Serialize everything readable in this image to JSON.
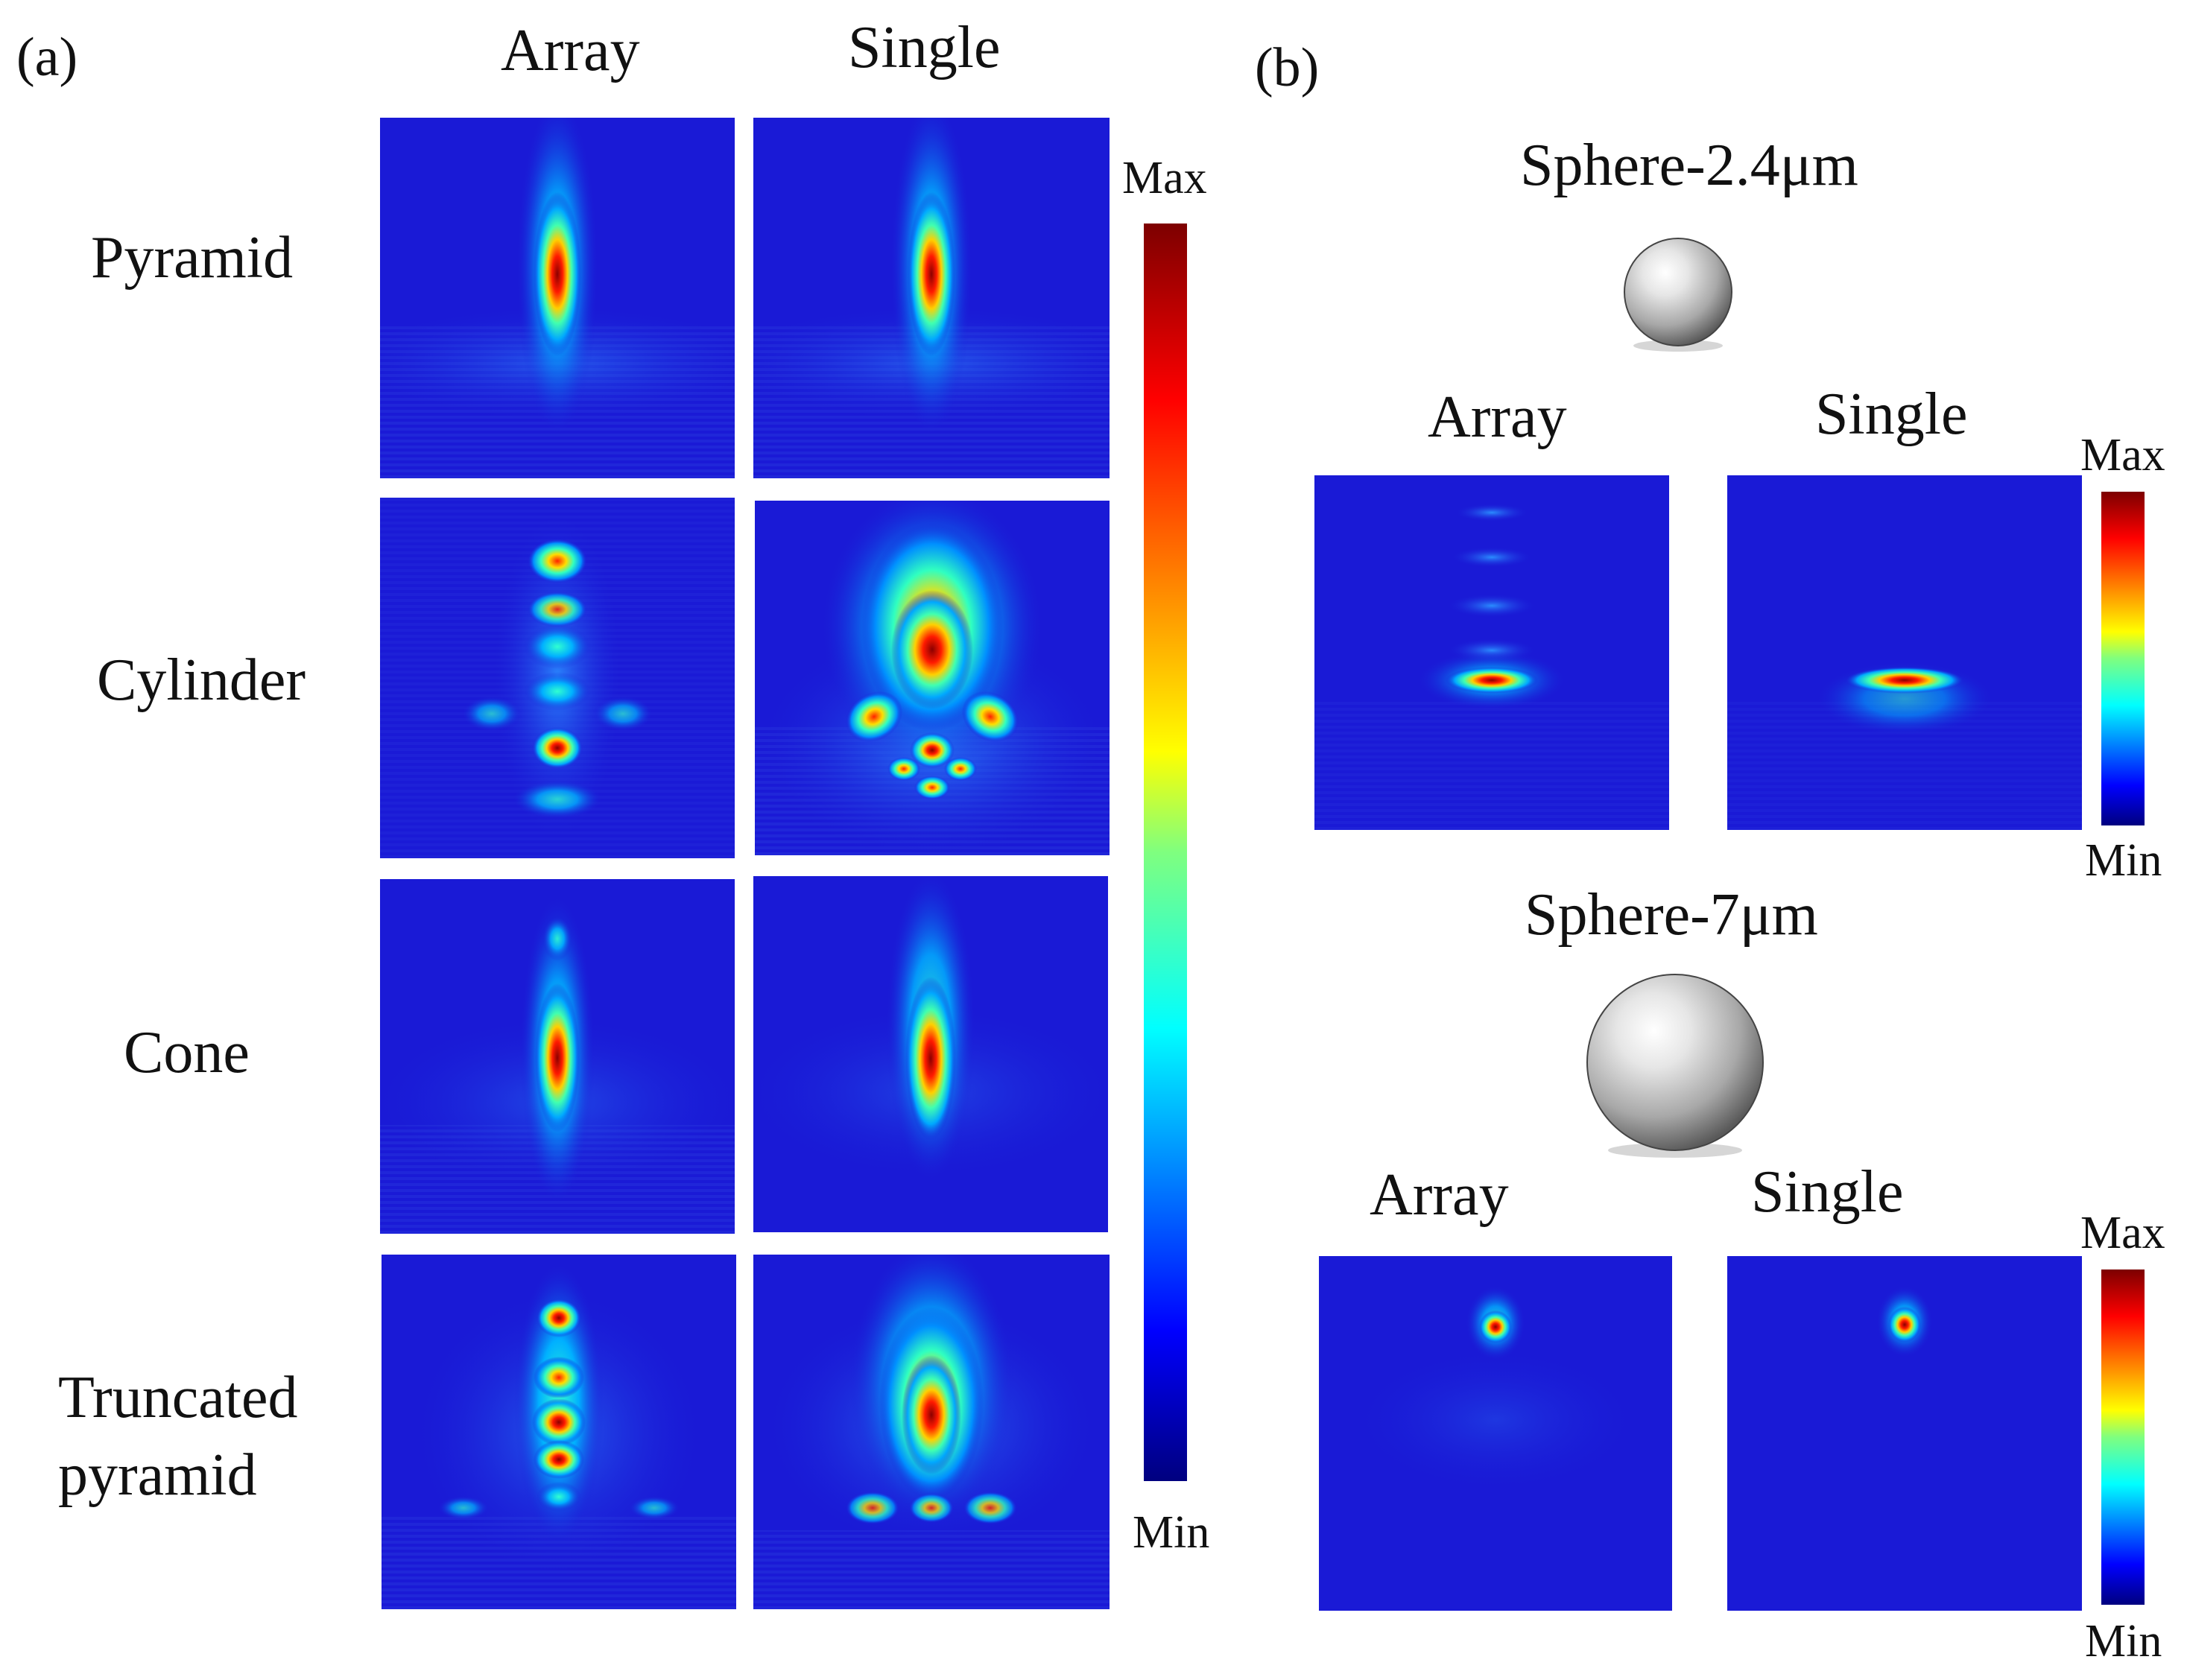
{
  "panel_a": {
    "label": "(a)",
    "col_array": "Array",
    "col_single": "Single",
    "rows": [
      "Pyramid",
      "Cylinder",
      "Cone",
      "Truncated",
      "pyramid"
    ],
    "colorbar": {
      "max": "Max",
      "min": "Min"
    }
  },
  "panel_b": {
    "label": "(b)",
    "sphere_small": {
      "title": "Sphere-2.4μm",
      "col_array": "Array",
      "col_single": "Single",
      "colorbar": {
        "max": "Max",
        "min": "Min"
      }
    },
    "sphere_large": {
      "title": "Sphere-7μm",
      "col_array": "Array",
      "col_single": "Single",
      "colorbar": {
        "max": "Max",
        "min": "Min"
      }
    }
  },
  "colors": {
    "background_field": "#1a1ad6",
    "colormap": "jet"
  }
}
